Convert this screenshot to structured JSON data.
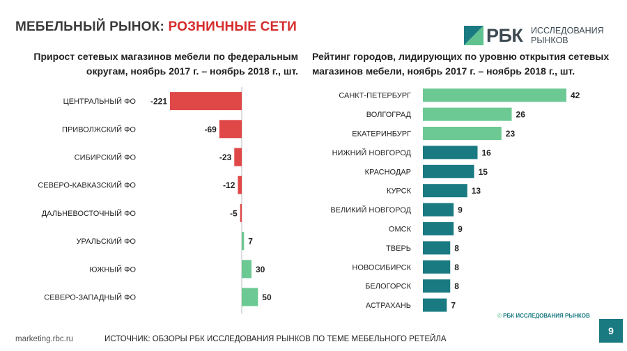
{
  "slide": {
    "title_part1": "МЕБЕЛЬНЫЙ РЫНОК:",
    "title_part2": "РОЗНИЧНЫЕ СЕТИ",
    "logo_brand": "РБК",
    "logo_line1": "ИССЛЕДОВАНИЯ",
    "logo_line2": "РЫНКОВ",
    "site": "marketing.rbc.ru",
    "source": "ИСТОЧНИК:  ОБЗОРЫ РБК ИССЛЕДОВАНИЯ РЫНКОВ ПО ТЕМЕ МЕБЕЛЬНОГО РЕТЕЙЛА",
    "copyright_symbol": "©",
    "copyright_text": "РБК ИССЛЕДОВАНИЯ РЫНКОВ",
    "page_number": "9",
    "colors": {
      "brand_red": "#d62b2b",
      "teal": "#1a7a82",
      "green": "#6cc993",
      "red": "#e04848"
    }
  },
  "chart_data": [
    {
      "type": "bar",
      "orientation": "horizontal",
      "title_line1": "Прирост сетевых магазинов мебели по федеральным",
      "title_line2": "округам, ноябрь 2017 г. – ноябрь 2018 г., шт.",
      "categories": [
        "ЦЕНТРАЛЬНЫЙ ФО",
        "ПРИВОЛЖСКИЙ ФО",
        "СИБИРСКИЙ ФО",
        "СЕВЕРО-КАВКАЗСКИЙ ФО",
        "ДАЛЬНЕВОСТОЧНЫЙ ФО",
        "УРАЛЬСКИЙ ФО",
        "ЮЖНЫЙ ФО",
        "СЕВЕРО-ЗАПАДНЫЙ ФО"
      ],
      "values": [
        -221,
        -69,
        -23,
        -12,
        -5,
        7,
        30,
        50
      ],
      "data_labels": [
        "-221",
        "-69",
        "-23",
        "-12",
        "-5",
        "7",
        "30",
        "50"
      ],
      "negative_color": "#e04848",
      "positive_color": "#6cc993"
    },
    {
      "type": "bar",
      "orientation": "horizontal",
      "title_line1": "Рейтинг городов, лидирующих по уровню открытия сетевых",
      "title_line2": "магазинов мебели, ноябрь 2017 г. – ноябрь 2018 г., шт.",
      "categories": [
        "САНКТ-ПЕТЕРБУРГ",
        "ВОЛГОГРАД",
        "ЕКАТЕРИНБУРГ",
        "НИЖНИЙ НОВГОРОД",
        "КРАСНОДАР",
        "КУРСК",
        "ВЕЛИКИЙ НОВГОРОД",
        "ОМСК",
        "ТВЕРЬ",
        "НОВОСИБИРСК",
        "БЕЛОГОРСК",
        "АСТРАХАНЬ"
      ],
      "values": [
        42,
        26,
        23,
        16,
        15,
        13,
        9,
        9,
        8,
        8,
        8,
        7
      ],
      "data_labels": [
        "42",
        "26",
        "23",
        "16",
        "15",
        "13",
        "9",
        "9",
        "8",
        "8",
        "8",
        "7"
      ],
      "top_color": "#6cc993",
      "rest_color": "#1a7a82",
      "top_count": 3
    }
  ]
}
